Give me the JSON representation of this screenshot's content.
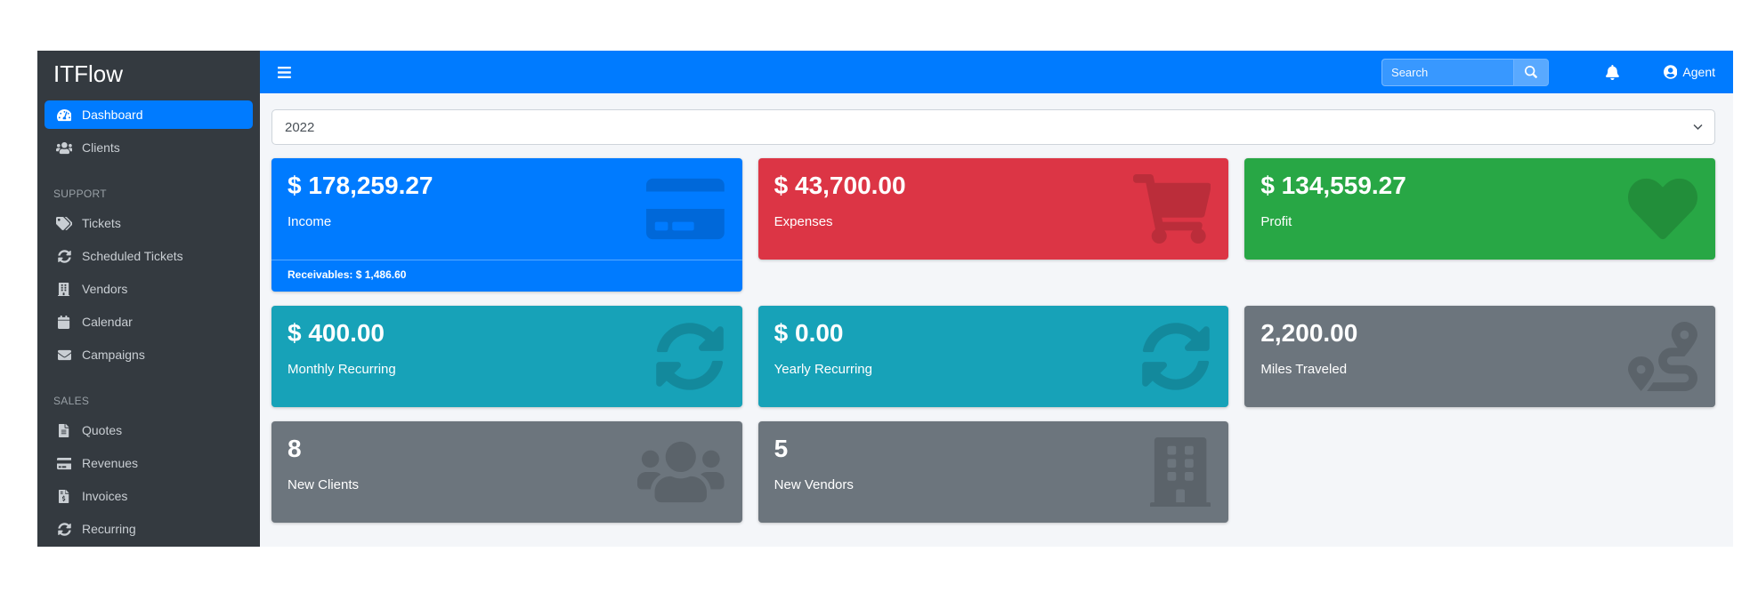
{
  "colors": {
    "primary": "#007bff",
    "danger": "#dc3545",
    "success": "#28a745",
    "info": "#17a2b8",
    "secondary": "#6c757d",
    "sidebar": "#343a40",
    "content_bg": "#f4f6f9"
  },
  "sidebar": {
    "brand": "ITFlow",
    "sections": [
      {
        "header": "",
        "items": [
          {
            "label": "Dashboard",
            "icon": "dashboard-icon",
            "active": true
          },
          {
            "label": "Clients",
            "icon": "users-icon",
            "active": false
          }
        ]
      },
      {
        "header": "SUPPORT",
        "items": [
          {
            "label": "Tickets",
            "icon": "tags-icon",
            "active": false
          },
          {
            "label": "Scheduled Tickets",
            "icon": "sync-icon",
            "active": false
          },
          {
            "label": "Vendors",
            "icon": "building-icon",
            "active": false
          },
          {
            "label": "Calendar",
            "icon": "calendar-icon",
            "active": false
          },
          {
            "label": "Campaigns",
            "icon": "envelope-icon",
            "active": false
          }
        ]
      },
      {
        "header": "SALES",
        "items": [
          {
            "label": "Quotes",
            "icon": "file-icon",
            "active": false
          },
          {
            "label": "Revenues",
            "icon": "credit-card-icon",
            "active": false
          },
          {
            "label": "Invoices",
            "icon": "file-invoice-dollar-icon",
            "active": false
          },
          {
            "label": "Recurring",
            "icon": "sync-icon",
            "active": false
          }
        ]
      }
    ]
  },
  "navbar": {
    "menu_icon": "bars-icon",
    "search": {
      "placeholder": "Search",
      "button_icon": "search-icon"
    },
    "bell_icon": "bell-icon",
    "user": {
      "label": "Agent",
      "icon": "user-circle-icon"
    }
  },
  "filters": {
    "year_select": {
      "value": "2022",
      "chevron_icon": "chevron-down-icon"
    }
  },
  "cards": [
    {
      "value": "$ 178,259.27",
      "label": "Income",
      "icon": "credit-card-icon",
      "color": "#007bff",
      "footer": "Receivables: $ 1,486.60"
    },
    {
      "value": "$ 43,700.00",
      "label": "Expenses",
      "icon": "shopping-cart-icon",
      "color": "#dc3545"
    },
    {
      "value": "$ 134,559.27",
      "label": "Profit",
      "icon": "heart-icon",
      "color": "#28a745"
    },
    {
      "value": "$ 400.00",
      "label": "Monthly Recurring",
      "icon": "sync-icon",
      "color": "#17a2b8"
    },
    {
      "value": "$ 0.00",
      "label": "Yearly Recurring",
      "icon": "sync-icon",
      "color": "#17a2b8"
    },
    {
      "value": "2,200.00",
      "label": "Miles Traveled",
      "icon": "route-icon",
      "color": "#6c757d"
    },
    {
      "value": "8",
      "label": "New Clients",
      "icon": "users-icon",
      "color": "#6c757d"
    },
    {
      "value": "5",
      "label": "New Vendors",
      "icon": "building-icon",
      "color": "#6c757d"
    }
  ]
}
